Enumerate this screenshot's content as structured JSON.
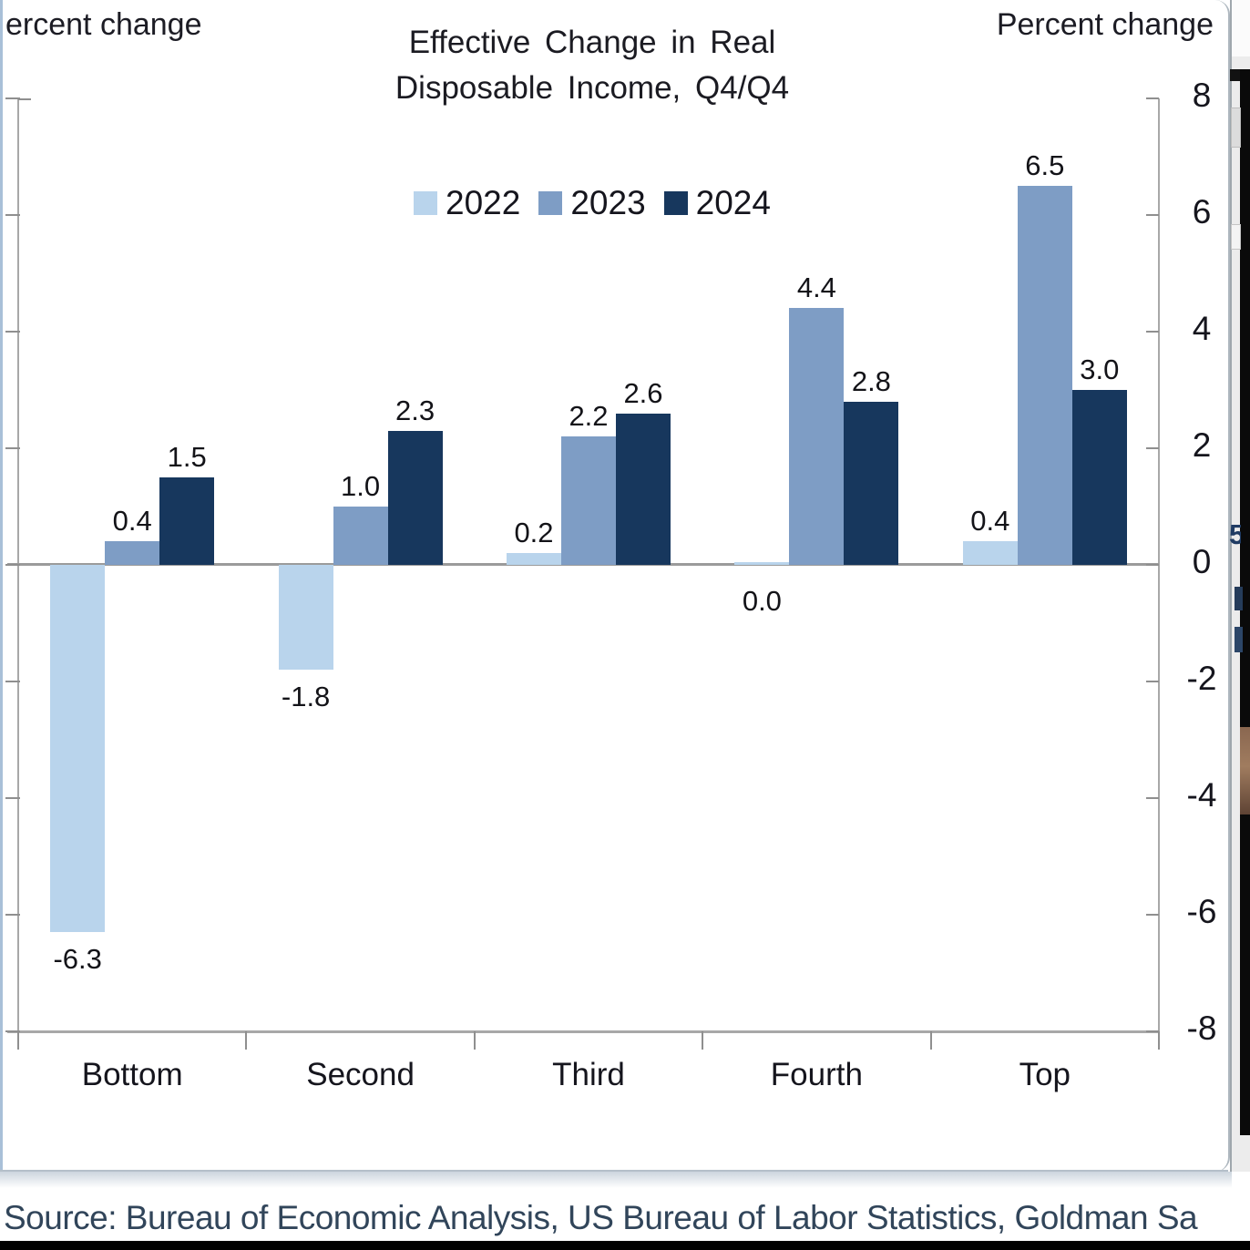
{
  "axis_headers": {
    "left": "ercent change",
    "right": "Percent change"
  },
  "chart_data": {
    "type": "bar",
    "title": "Effective Change in Real Disposable Income, Q4/Q4",
    "title_lines": [
      "Effective Change in Real",
      "Disposable Income, Q4/Q4"
    ],
    "categories": [
      "Bottom",
      "Second",
      "Third",
      "Fourth",
      "Top"
    ],
    "series": [
      {
        "name": "2022",
        "color": "#b9d4ec",
        "values": [
          -6.3,
          -1.8,
          0.2,
          0.0,
          0.4
        ]
      },
      {
        "name": "2023",
        "color": "#7e9dc5",
        "values": [
          0.4,
          1.0,
          2.2,
          4.4,
          6.5
        ]
      },
      {
        "name": "2024",
        "color": "#17375d",
        "values": [
          1.5,
          2.3,
          2.6,
          2.8,
          3.0
        ]
      }
    ],
    "ylabel": "Percent change",
    "ylim": [
      -8,
      8
    ],
    "y_ticks": [
      8,
      6,
      4,
      2,
      0,
      -2,
      -4,
      -6,
      -8
    ],
    "grid": false,
    "legend_position": "top-center",
    "value_label_decimals": 1
  },
  "footer": {
    "source_text": "Source: Bureau of Economic Analysis, US Bureau of Labor Statistics, Goldman Sa"
  },
  "edge_artifacts": {
    "glyph": "5"
  }
}
